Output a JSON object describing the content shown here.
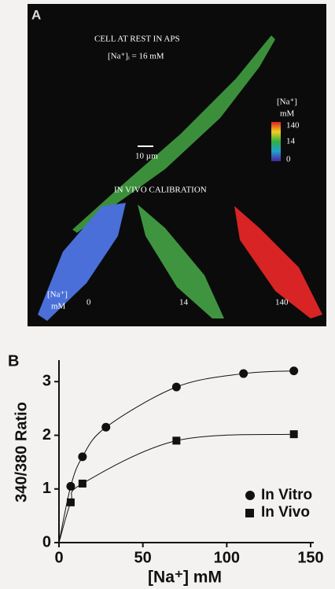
{
  "panel_a": {
    "label": "A",
    "rest_title": "CELL AT REST IN APS",
    "rest_conc": "[Na⁺]ᵢ = 16 mM",
    "colorbar_title": "[Na⁺]",
    "colorbar_unit": "mM",
    "colorbar_ticks": [
      "140",
      "14",
      "0"
    ],
    "scale_bar": "10 µm",
    "calibration_title": "IN VIVO CALIBRATION",
    "calibration_axis": "[Na⁺]",
    "calibration_unit": "mM",
    "calibration_labels": [
      "0",
      "14",
      "140"
    ]
  },
  "chart_data": {
    "type": "scatter",
    "panel_label": "B",
    "x_label": "[Na⁺] mM",
    "y_label": "340/380 Ratio",
    "xlim": [
      0,
      150
    ],
    "xticks": [
      0,
      50,
      100,
      150
    ],
    "ylim": [
      0,
      3.4
    ],
    "yticks": [
      0,
      1,
      2,
      3
    ],
    "legend": "right",
    "series": [
      {
        "name": "In Vitro",
        "marker": "circle",
        "color": "#111111",
        "x": [
          7,
          14,
          28,
          70,
          110,
          140
        ],
        "values": [
          1.05,
          1.6,
          2.15,
          2.9,
          3.15,
          3.2
        ]
      },
      {
        "name": "In Vivo",
        "marker": "square",
        "color": "#111111",
        "x": [
          7,
          14,
          70,
          140
        ],
        "values": [
          0.75,
          1.1,
          1.9,
          2.02
        ]
      }
    ]
  }
}
